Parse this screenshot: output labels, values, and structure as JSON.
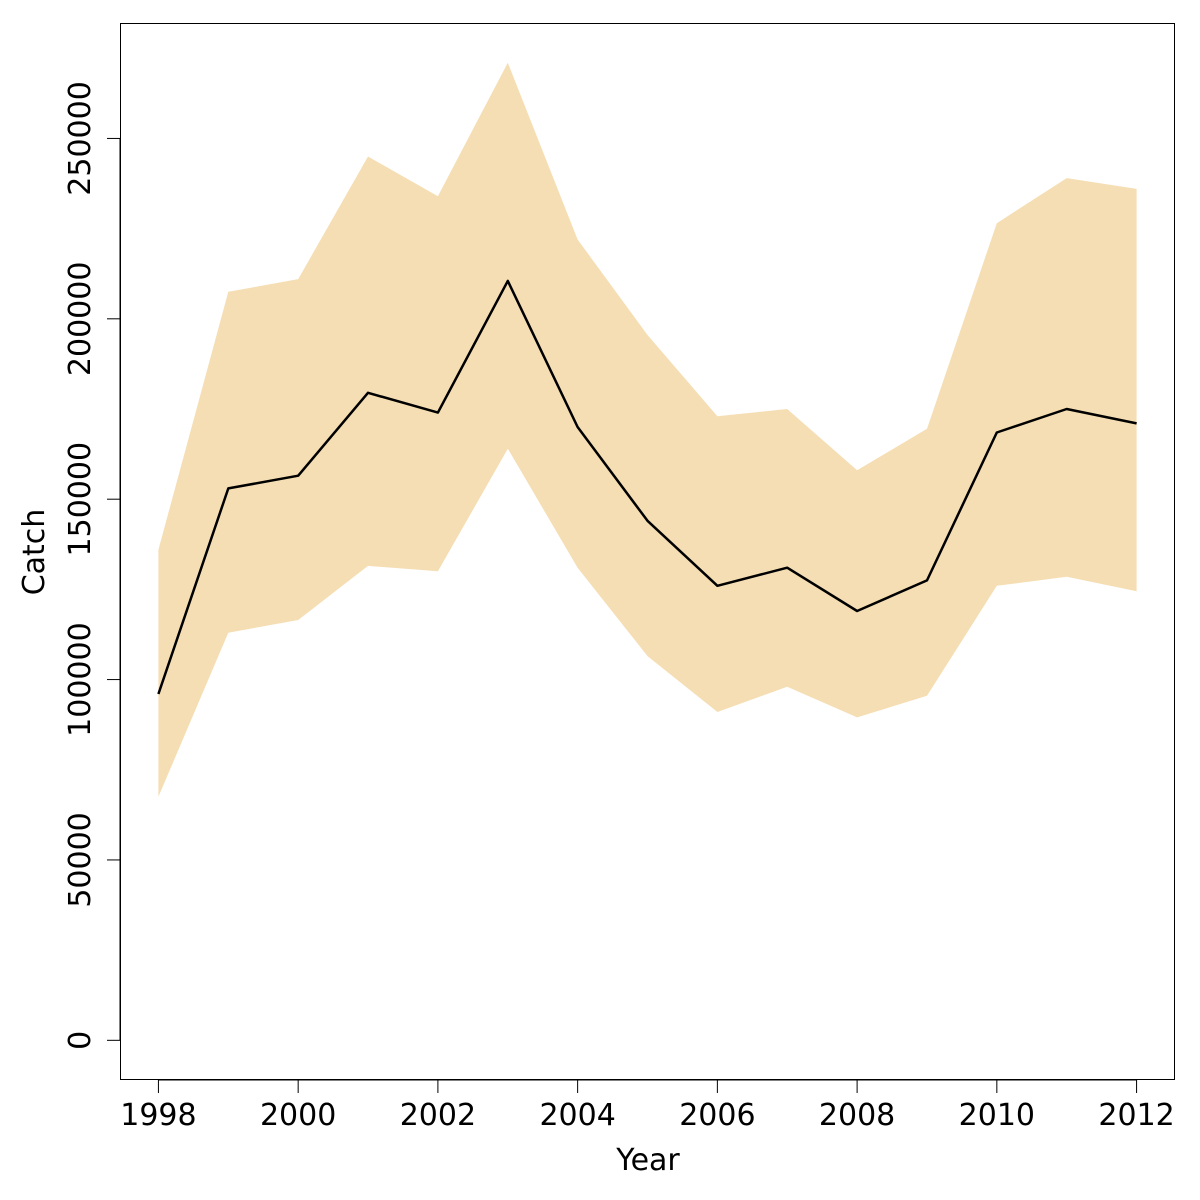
{
  "chart_data": {
    "type": "area",
    "xlabel": "Year",
    "ylabel": "Catch",
    "xlim": [
      1997.45,
      2012.55
    ],
    "ylim": [
      -11000,
      282000
    ],
    "x_ticks": [
      1998,
      2000,
      2002,
      2004,
      2006,
      2008,
      2010,
      2012
    ],
    "x_tick_labels": [
      "1998",
      "2000",
      "2002",
      "2004",
      "2006",
      "2008",
      "2010",
      "2012"
    ],
    "y_ticks": [
      0,
      50000,
      100000,
      150000,
      200000,
      250000
    ],
    "y_tick_labels": [
      "0",
      "50000",
      "100000",
      "150000",
      "200000",
      "250000"
    ],
    "grid": false,
    "legend": "none",
    "x": [
      1998,
      1999,
      2000,
      2001,
      2002,
      2003,
      2004,
      2005,
      2006,
      2007,
      2008,
      2009,
      2010,
      2011,
      2012
    ],
    "series": [
      {
        "role": "estimate",
        "color": "#000000",
        "values": [
          96000,
          153000,
          156500,
          179500,
          174000,
          210500,
          170000,
          144000,
          126000,
          131000,
          119000,
          127500,
          168500,
          175000,
          171000
        ]
      },
      {
        "role": "upper",
        "color": "#F5DEB3",
        "values": [
          136000,
          207500,
          211000,
          245000,
          234000,
          271000,
          222000,
          195500,
          173000,
          175000,
          158000,
          169500,
          226500,
          239000,
          236000
        ]
      },
      {
        "role": "lower",
        "color": "#F5DEB3",
        "values": [
          67500,
          113000,
          116500,
          131500,
          130000,
          164000,
          131000,
          106500,
          91000,
          98000,
          89500,
          95500,
          126000,
          128500,
          124500
        ]
      }
    ]
  }
}
